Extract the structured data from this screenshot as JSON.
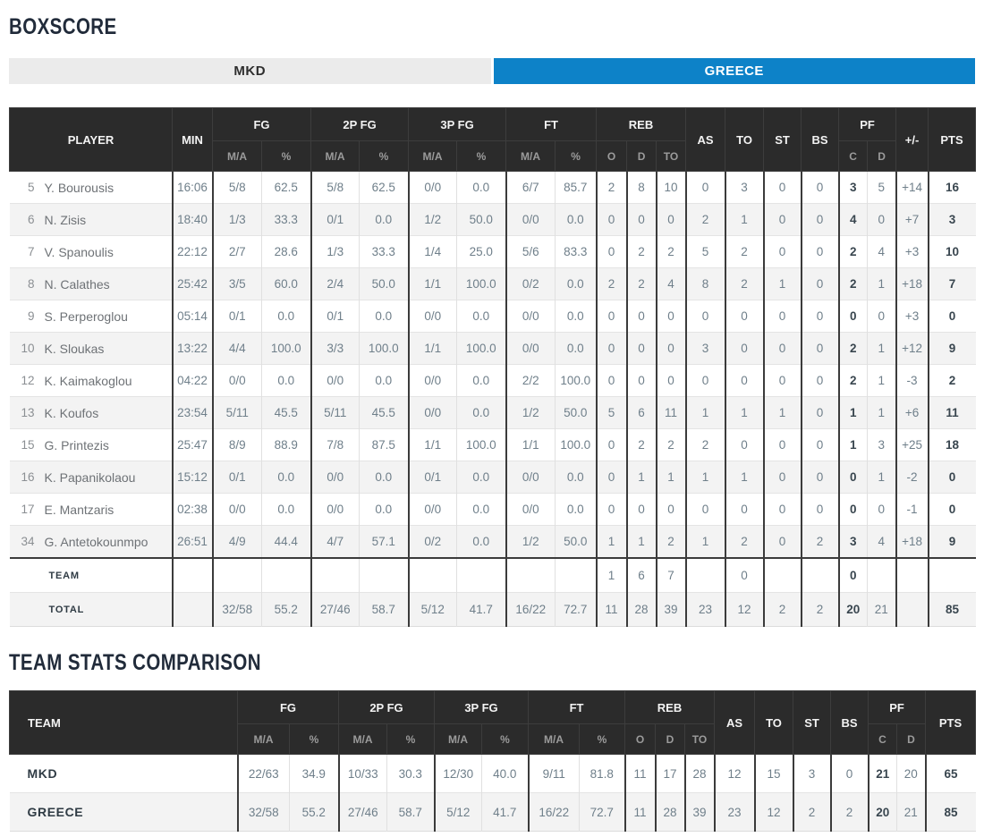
{
  "titles": {
    "boxscore": "BOXSCORE",
    "comparison": "TEAM STATS COMPARISON"
  },
  "tabs": [
    {
      "label": "MKD",
      "active": false
    },
    {
      "label": "GREECE",
      "active": true
    }
  ],
  "colors": {
    "accent_blue": "#0d82c8",
    "header_dark": "#2b2b2b",
    "tab_inactive_gray": "#ebebeb"
  },
  "boxscore": {
    "headers": {
      "player": "PLAYER",
      "min": "MIN",
      "fg": "FG",
      "fg2p": "2P FG",
      "fg3p": "3P FG",
      "ft": "FT",
      "reb": "REB",
      "as": "AS",
      "to": "TO",
      "st": "ST",
      "bs": "BS",
      "pf": "PF",
      "plus_minus": "+/-",
      "pts": "PTS",
      "ma": "M/A",
      "pct": "%",
      "reb_o": "O",
      "reb_d": "D",
      "reb_to": "TO",
      "pf_c": "C",
      "pf_d": "D"
    },
    "players": [
      [
        "5",
        "Y. Bourousis",
        "16:06",
        "5/8",
        "62.5",
        "5/8",
        "62.5",
        "0/0",
        "0.0",
        "6/7",
        "85.7",
        "2",
        "8",
        "10",
        "0",
        "3",
        "0",
        "0",
        "3",
        "5",
        "+14",
        "16"
      ],
      [
        "6",
        "N. Zisis",
        "18:40",
        "1/3",
        "33.3",
        "0/1",
        "0.0",
        "1/2",
        "50.0",
        "0/0",
        "0.0",
        "0",
        "0",
        "0",
        "2",
        "1",
        "0",
        "0",
        "4",
        "0",
        "+7",
        "3"
      ],
      [
        "7",
        "V. Spanoulis",
        "22:12",
        "2/7",
        "28.6",
        "1/3",
        "33.3",
        "1/4",
        "25.0",
        "5/6",
        "83.3",
        "0",
        "2",
        "2",
        "5",
        "2",
        "0",
        "0",
        "2",
        "4",
        "+3",
        "10"
      ],
      [
        "8",
        "N. Calathes",
        "25:42",
        "3/5",
        "60.0",
        "2/4",
        "50.0",
        "1/1",
        "100.0",
        "0/2",
        "0.0",
        "2",
        "2",
        "4",
        "8",
        "2",
        "1",
        "0",
        "2",
        "1",
        "+18",
        "7"
      ],
      [
        "9",
        "S. Perperoglou",
        "05:14",
        "0/1",
        "0.0",
        "0/1",
        "0.0",
        "0/0",
        "0.0",
        "0/0",
        "0.0",
        "0",
        "0",
        "0",
        "0",
        "0",
        "0",
        "0",
        "0",
        "0",
        "+3",
        "0"
      ],
      [
        "10",
        "K. Sloukas",
        "13:22",
        "4/4",
        "100.0",
        "3/3",
        "100.0",
        "1/1",
        "100.0",
        "0/0",
        "0.0",
        "0",
        "0",
        "0",
        "3",
        "0",
        "0",
        "0",
        "2",
        "1",
        "+12",
        "9"
      ],
      [
        "12",
        "K. Kaimakoglou",
        "04:22",
        "0/0",
        "0.0",
        "0/0",
        "0.0",
        "0/0",
        "0.0",
        "2/2",
        "100.0",
        "0",
        "0",
        "0",
        "0",
        "0",
        "0",
        "0",
        "2",
        "1",
        "-3",
        "2"
      ],
      [
        "13",
        "K. Koufos",
        "23:54",
        "5/11",
        "45.5",
        "5/11",
        "45.5",
        "0/0",
        "0.0",
        "1/2",
        "50.0",
        "5",
        "6",
        "11",
        "1",
        "1",
        "1",
        "0",
        "1",
        "1",
        "+6",
        "11"
      ],
      [
        "15",
        "G. Printezis",
        "25:47",
        "8/9",
        "88.9",
        "7/8",
        "87.5",
        "1/1",
        "100.0",
        "1/1",
        "100.0",
        "0",
        "2",
        "2",
        "2",
        "0",
        "0",
        "0",
        "1",
        "3",
        "+25",
        "18"
      ],
      [
        "16",
        "K. Papanikolaou",
        "15:12",
        "0/1",
        "0.0",
        "0/0",
        "0.0",
        "0/1",
        "0.0",
        "0/0",
        "0.0",
        "0",
        "1",
        "1",
        "1",
        "1",
        "0",
        "0",
        "0",
        "1",
        "-2",
        "0"
      ],
      [
        "17",
        "E. Mantzaris",
        "02:38",
        "0/0",
        "0.0",
        "0/0",
        "0.0",
        "0/0",
        "0.0",
        "0/0",
        "0.0",
        "0",
        "0",
        "0",
        "0",
        "0",
        "0",
        "0",
        "0",
        "0",
        "-1",
        "0"
      ],
      [
        "34",
        "G. Antetokounmpo",
        "26:51",
        "4/9",
        "44.4",
        "4/7",
        "57.1",
        "0/2",
        "0.0",
        "1/2",
        "50.0",
        "1",
        "1",
        "2",
        "1",
        "2",
        "0",
        "2",
        "3",
        "4",
        "+18",
        "9"
      ]
    ],
    "team_row": [
      "",
      "TEAM",
      "",
      "",
      "",
      "",
      "",
      "",
      "",
      "",
      "",
      "1",
      "6",
      "7",
      "",
      "0",
      "",
      "",
      "0",
      "",
      "",
      ""
    ],
    "total_row": [
      "",
      "TOTAL",
      "",
      "32/58",
      "55.2",
      "27/46",
      "58.7",
      "5/12",
      "41.7",
      "16/22",
      "72.7",
      "11",
      "28",
      "39",
      "23",
      "12",
      "2",
      "2",
      "20",
      "21",
      "",
      "85"
    ]
  },
  "comparison": {
    "headers": {
      "team": "TEAM",
      "fg": "FG",
      "fg2p": "2P FG",
      "fg3p": "3P FG",
      "ft": "FT",
      "reb": "REB",
      "as": "AS",
      "to": "TO",
      "st": "ST",
      "bs": "BS",
      "pf": "PF",
      "pts": "PTS",
      "ma": "M/A",
      "pct": "%",
      "reb_o": "O",
      "reb_d": "D",
      "reb_to": "TO",
      "pf_c": "C",
      "pf_d": "D"
    },
    "rows": [
      [
        "MKD",
        "22/63",
        "34.9",
        "10/33",
        "30.3",
        "12/30",
        "40.0",
        "9/11",
        "81.8",
        "11",
        "17",
        "28",
        "12",
        "15",
        "3",
        "0",
        "21",
        "20",
        "65"
      ],
      [
        "GREECE",
        "32/58",
        "55.2",
        "27/46",
        "58.7",
        "5/12",
        "41.7",
        "16/22",
        "72.7",
        "11",
        "28",
        "39",
        "23",
        "12",
        "2",
        "2",
        "20",
        "21",
        "85"
      ]
    ]
  }
}
